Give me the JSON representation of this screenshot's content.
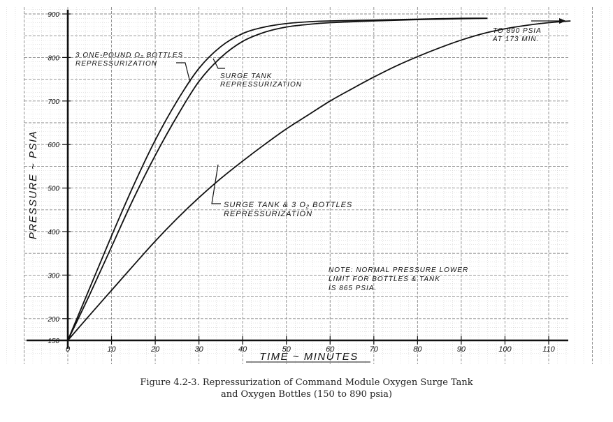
{
  "chart_data": {
    "type": "line",
    "title": "",
    "xlabel": "TIME ~ MINUTES",
    "ylabel": "PRESSURE ~ PSIA",
    "xlim": [
      0,
      110
    ],
    "ylim": [
      150,
      900
    ],
    "xticks": [
      0,
      10,
      20,
      30,
      40,
      50,
      60,
      70,
      80,
      90,
      100,
      110
    ],
    "yticks": [
      150,
      200,
      300,
      400,
      500,
      600,
      700,
      800,
      900
    ],
    "grid": true,
    "series": [
      {
        "name": "3 ONE-POUND O2 BOTTLES REPRESSURIZATION",
        "x": [
          0,
          5,
          10,
          15,
          20,
          25,
          30,
          35,
          40,
          45,
          50,
          55,
          60,
          70,
          80,
          90,
          96
        ],
        "y": [
          150,
          270,
          390,
          505,
          610,
          700,
          775,
          825,
          855,
          870,
          878,
          882,
          884,
          886,
          888,
          890,
          890
        ]
      },
      {
        "name": "SURGE TANK REPRESSURIZATION",
        "x": [
          0,
          5,
          10,
          15,
          20,
          25,
          30,
          35,
          40,
          45,
          50,
          55,
          60,
          70,
          80,
          90,
          96
        ],
        "y": [
          150,
          255,
          365,
          475,
          575,
          665,
          745,
          800,
          837,
          858,
          870,
          876,
          880,
          884,
          887,
          889,
          890
        ]
      },
      {
        "name": "SURGE TANK & 3 O2 BOTTLES REPRESSURIZATION",
        "x": [
          0,
          5,
          10,
          15,
          20,
          25,
          30,
          35,
          40,
          45,
          50,
          55,
          60,
          65,
          70,
          75,
          80,
          85,
          90,
          95,
          100,
          105,
          110,
          115
        ],
        "y": [
          150,
          208,
          265,
          322,
          378,
          430,
          478,
          522,
          562,
          600,
          636,
          668,
          700,
          728,
          755,
          780,
          802,
          822,
          840,
          855,
          866,
          874,
          880,
          884
        ]
      }
    ],
    "annotations": [
      {
        "id": "bottles",
        "lines": [
          "3 ONE-POUND O₂ BOTTLES",
          "REPRESSURIZATION"
        ]
      },
      {
        "id": "surge",
        "lines": [
          "SURGE TANK",
          "REPRESSURIZATION"
        ]
      },
      {
        "id": "combined",
        "lines": [
          "SURGE TANK & 3 O₂ BOTTLES",
          "REPRESSURIZATION"
        ]
      },
      {
        "id": "arrow",
        "lines": [
          "TO 890 PSIA",
          "AT 173 MIN."
        ]
      },
      {
        "id": "note",
        "lines": [
          "NOTE: NORMAL PRESSURE LOWER",
          "LIMIT FOR BOTTLES & TANK",
          "IS 865 PSIA."
        ]
      }
    ],
    "colors": {
      "line": "#111111",
      "grid_minor": "#c9c9c9",
      "grid_major": "#8a8a8a"
    }
  },
  "caption": {
    "line1": "Figure 4.2-3.  Repressurization of Command Module Oxygen Surge Tank",
    "line2": "and Oxygen Bottles (150 to 890 psia)"
  }
}
